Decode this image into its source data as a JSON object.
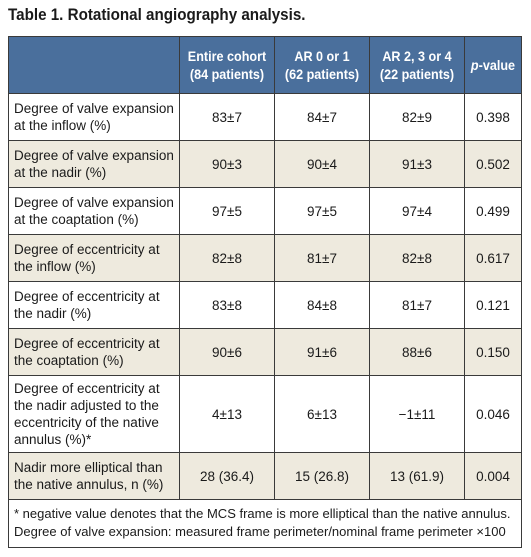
{
  "title": "Table 1. Rotational angiography analysis.",
  "header": {
    "col1": [
      "Entire cohort",
      "(84 patients)"
    ],
    "col2": [
      "AR 0 or 1",
      "(62 patients)"
    ],
    "col3": [
      "AR 2, 3 or 4",
      "(22 patients)"
    ],
    "col4_italic": "p",
    "col4_rest": "-value"
  },
  "rows": [
    {
      "label": [
        "Degree of valve expansion",
        "at the inflow (%)"
      ],
      "entire": "83±7",
      "ar01": "84±7",
      "ar234": "82±9",
      "p": "0.398"
    },
    {
      "label": [
        "Degree of valve expansion",
        "at the nadir (%)"
      ],
      "entire": "90±3",
      "ar01": "90±4",
      "ar234": "91±3",
      "p": "0.502"
    },
    {
      "label": [
        "Degree of valve expansion",
        "at the coaptation (%)"
      ],
      "entire": "97±5",
      "ar01": "97±5",
      "ar234": "97±4",
      "p": "0.499"
    },
    {
      "label": [
        "Degree of eccentricity at",
        "the inflow (%)"
      ],
      "entire": "82±8",
      "ar01": "81±7",
      "ar234": "82±8",
      "p": "0.617"
    },
    {
      "label": [
        "Degree of eccentricity at",
        "the nadir (%)"
      ],
      "entire": "83±8",
      "ar01": "84±8",
      "ar234": "81±7",
      "p": "0.121"
    },
    {
      "label": [
        "Degree of eccentricity at",
        "the coaptation (%)"
      ],
      "entire": "90±6",
      "ar01": "91±6",
      "ar234": "88±6",
      "p": "0.150"
    },
    {
      "label": [
        "Degree of eccentricity at",
        "the nadir adjusted to the",
        "eccentricity of the native",
        "annulus (%)*"
      ],
      "entire": "4±13",
      "ar01": "6±13",
      "ar234": "−1±11",
      "p": "0.046"
    },
    {
      "label": [
        "Nadir more elliptical than",
        "the native annulus, n (%)"
      ],
      "entire": "28 (36.4)",
      "ar01": "15 (26.8)",
      "ar234": "13 (61.9)",
      "p": "0.004"
    }
  ],
  "footnotes": [
    "* negative value denotes that the MCS frame is more elliptical than the native annulus.",
    "Degree of valve expansion: measured frame perimeter/nominal frame perimeter ×100"
  ]
}
